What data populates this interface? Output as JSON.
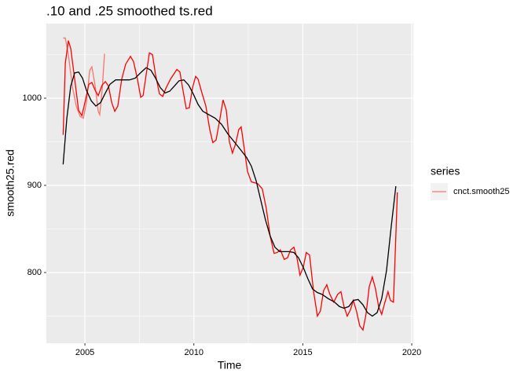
{
  "chart_data": {
    "type": "line",
    "title": ".10 and .25 smoothed ts.red",
    "x_label": "Time",
    "y_label": "smooth25.red",
    "legend_title": "series",
    "legend_position": "right",
    "grid": true,
    "xlim": [
      2003.23,
      2020.07
    ],
    "ylim": [
      718.9,
      1085.6
    ],
    "xticks": [
      2005,
      2010,
      2015,
      2020
    ],
    "yticks": [
      800,
      900,
      1000
    ],
    "xminorticks": [
      2007.5,
      2012.5,
      2017.5
    ],
    "yminorticks": [
      750,
      850,
      950,
      1050
    ],
    "series": [
      {
        "name": "cnct.smooth25",
        "color": "#f8766d",
        "x": [
          2004.0,
          2004.1,
          2004.24,
          2004.42,
          2004.6,
          2004.78,
          2004.93,
          2005.07,
          2005.22,
          2005.32,
          2005.47,
          2005.61,
          2005.68,
          2005.79,
          2005.9
        ],
        "values": [
          1069,
          1069,
          1050,
          1014,
          991,
          979,
          977,
          995,
          1032,
          1036,
          1014,
          985,
          981,
          1009,
          1051
        ]
      },
      {
        "color": "#ff0000",
        "x": [
          2004.0,
          2004.1,
          2004.24,
          2004.35,
          2004.53,
          2004.71,
          2004.86,
          2005.0,
          2005.18,
          2005.32,
          2005.47,
          2005.61,
          2005.79,
          2005.94,
          2006.08,
          2006.23,
          2006.37,
          2006.51,
          2006.69,
          2006.87,
          2007.09,
          2007.23,
          2007.41,
          2007.56,
          2007.67,
          2007.81,
          2007.96,
          2008.1,
          2008.24,
          2008.42,
          2008.57,
          2008.71,
          2008.93,
          2009.22,
          2009.36,
          2009.5,
          2009.65,
          2009.79,
          2009.94,
          2010.08,
          2010.19,
          2010.37,
          2010.55,
          2010.73,
          2010.87,
          2011.02,
          2011.2,
          2011.34,
          2011.49,
          2011.63,
          2011.77,
          2011.92,
          2012.06,
          2012.17,
          2012.32,
          2012.46,
          2012.64,
          2012.93,
          2013.14,
          2013.32,
          2013.5,
          2013.68,
          2013.83,
          2013.97,
          2014.15,
          2014.3,
          2014.44,
          2014.59,
          2014.73,
          2014.87,
          2015.02,
          2015.16,
          2015.31,
          2015.49,
          2015.67,
          2015.81,
          2015.95,
          2016.1,
          2016.24,
          2016.42,
          2016.6,
          2016.75,
          2016.89,
          2017.04,
          2017.18,
          2017.32,
          2017.47,
          2017.61,
          2017.76,
          2017.9,
          2018.05,
          2018.19,
          2018.33,
          2018.48,
          2018.62,
          2018.77,
          2018.91,
          2019.02,
          2019.16,
          2019.27,
          2019.34
        ],
        "values": [
          958,
          1040,
          1066,
          1057,
          1022,
          986,
          980,
          995,
          1016,
          1018,
          1009,
          1003,
          1015,
          1019,
          1014,
          995,
          985,
          991,
          1022,
          1039,
          1048,
          1042,
          1022,
          1001,
          1003,
          1027,
          1052,
          1050,
          1027,
          1005,
          1002,
          1011,
          1022,
          1033,
          1030,
          1009,
          988,
          989,
          1012,
          1025,
          1022,
          1006,
          991,
          964,
          949,
          952,
          977,
          998,
          986,
          950,
          937,
          948,
          964,
          967,
          941,
          916,
          904,
          902,
          896,
          874,
          842,
          822,
          823,
          826,
          815,
          817,
          826,
          829,
          817,
          797,
          806,
          823,
          820,
          779,
          750,
          756,
          779,
          786,
          775,
          766,
          775,
          778,
          761,
          750,
          757,
          768,
          755,
          739,
          734,
          752,
          784,
          795,
          782,
          761,
          752,
          766,
          778,
          768,
          766,
          842,
          892
        ]
      },
      {
        "color": "#000000",
        "x": [
          2004.0,
          2004.17,
          2004.35,
          2004.53,
          2004.71,
          2004.89,
          2005.07,
          2005.29,
          2005.5,
          2005.72,
          2005.94,
          2006.15,
          2006.41,
          2006.73,
          2007.05,
          2007.31,
          2007.59,
          2007.81,
          2008.03,
          2008.24,
          2008.46,
          2008.68,
          2008.89,
          2009.11,
          2009.32,
          2009.54,
          2009.76,
          2009.97,
          2010.19,
          2010.41,
          2010.69,
          2010.98,
          2011.27,
          2011.56,
          2011.85,
          2012.14,
          2012.42,
          2012.64,
          2012.86,
          2013.07,
          2013.29,
          2013.5,
          2013.72,
          2013.94,
          2014.15,
          2014.37,
          2014.59,
          2014.8,
          2015.02,
          2015.23,
          2015.45,
          2015.67,
          2015.88,
          2016.17,
          2016.46,
          2016.68,
          2016.89,
          2017.11,
          2017.32,
          2017.54,
          2017.76,
          2017.97,
          2018.19,
          2018.41,
          2018.62,
          2018.84,
          2019.05,
          2019.27
        ],
        "values": [
          924,
          977,
          1014,
          1029,
          1030,
          1023,
          1009,
          997,
          991,
          995,
          1006,
          1016,
          1021,
          1021,
          1021,
          1023,
          1030,
          1035,
          1032,
          1023,
          1012,
          1006,
          1008,
          1014,
          1020,
          1021,
          1015,
          1005,
          993,
          985,
          981,
          977,
          970,
          959,
          950,
          941,
          932,
          922,
          905,
          883,
          860,
          842,
          829,
          824,
          824,
          824,
          823,
          817,
          806,
          793,
          781,
          777,
          775,
          770,
          766,
          761,
          759,
          761,
          768,
          769,
          763,
          754,
          750,
          754,
          770,
          802,
          851,
          899
        ]
      }
    ]
  }
}
